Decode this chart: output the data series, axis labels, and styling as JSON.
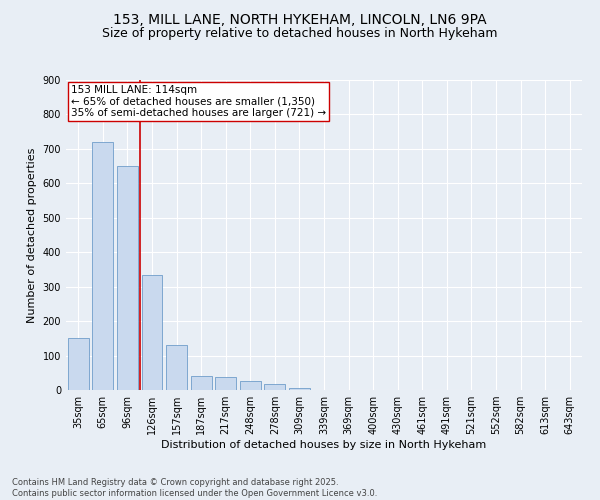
{
  "title_line1": "153, MILL LANE, NORTH HYKEHAM, LINCOLN, LN6 9PA",
  "title_line2": "Size of property relative to detached houses in North Hykeham",
  "xlabel": "Distribution of detached houses by size in North Hykeham",
  "ylabel": "Number of detached properties",
  "footnote": "Contains HM Land Registry data © Crown copyright and database right 2025.\nContains public sector information licensed under the Open Government Licence v3.0.",
  "categories": [
    "35sqm",
    "65sqm",
    "96sqm",
    "126sqm",
    "157sqm",
    "187sqm",
    "217sqm",
    "248sqm",
    "278sqm",
    "309sqm",
    "339sqm",
    "369sqm",
    "400sqm",
    "430sqm",
    "461sqm",
    "491sqm",
    "521sqm",
    "552sqm",
    "582sqm",
    "613sqm",
    "643sqm"
  ],
  "values": [
    150,
    720,
    650,
    335,
    130,
    42,
    38,
    27,
    17,
    5,
    0,
    0,
    0,
    0,
    0,
    0,
    0,
    0,
    0,
    0,
    0
  ],
  "bar_color": "#c9d9ee",
  "bar_edge_color": "#5a8fc2",
  "vline_x": 2.5,
  "vline_color": "#cc0000",
  "annotation_text": "153 MILL LANE: 114sqm\n← 65% of detached houses are smaller (1,350)\n35% of semi-detached houses are larger (721) →",
  "annotation_box_color": "#ffffff",
  "annotation_box_edge": "#cc0000",
  "ylim": [
    0,
    900
  ],
  "yticks": [
    0,
    100,
    200,
    300,
    400,
    500,
    600,
    700,
    800,
    900
  ],
  "bg_color": "#e8eef5",
  "plot_bg_color": "#e8eef5",
  "grid_color": "#ffffff",
  "title_fontsize": 10,
  "subtitle_fontsize": 9,
  "annotation_fontsize": 7.5,
  "axis_label_fontsize": 8,
  "tick_fontsize": 7,
  "footnote_fontsize": 6
}
